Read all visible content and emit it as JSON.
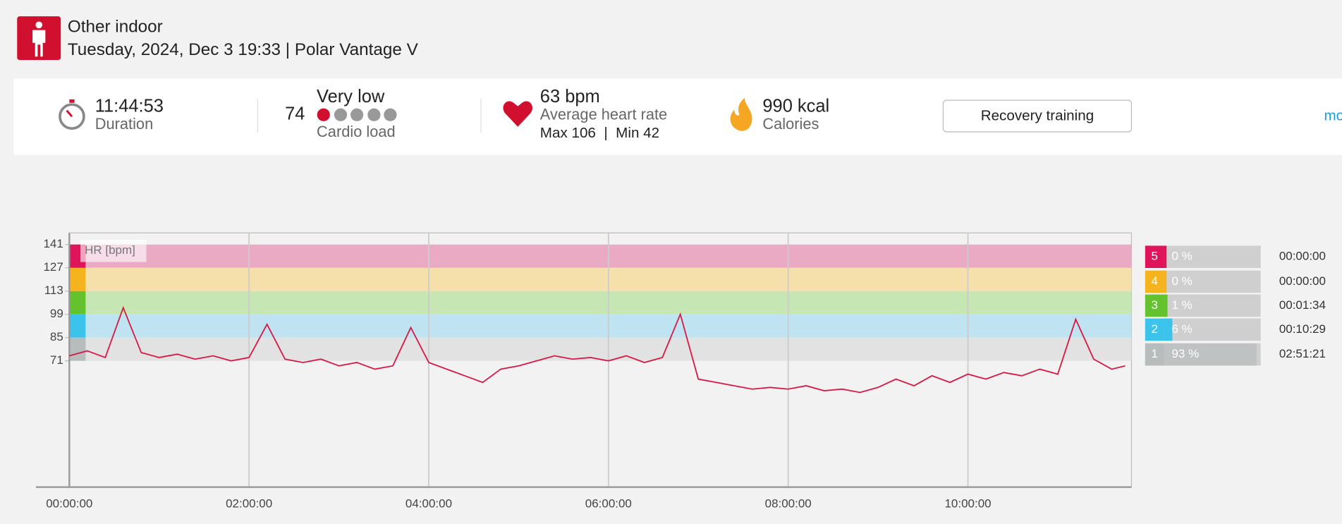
{
  "header": {
    "title": "Other indoor",
    "subtitle": "Tuesday, 2024, Dec 3 19:33 | Polar Vantage V"
  },
  "summary": {
    "duration": "11:44:53",
    "duration_label": "Duration",
    "cardio_load": "74",
    "cardio_level": "Very low",
    "cardio_label": "Cardio load",
    "avg_hr": "63 bpm",
    "avg_hr_label": "Average heart rate",
    "hr_range": "Max 106  |  Min 42",
    "calories": "990 kcal",
    "calories_label": "Calories",
    "benefit": "Recovery training",
    "more": "mo"
  },
  "chart_data": {
    "type": "line",
    "x": [
      0,
      0.2,
      0.4,
      0.6,
      0.8,
      1.0,
      1.2,
      1.4,
      1.6,
      1.8,
      2.0,
      2.2,
      2.4,
      2.6,
      2.8,
      3.0,
      3.2,
      3.4,
      3.6,
      3.8,
      4.0,
      4.2,
      4.4,
      4.6,
      4.8,
      5.0,
      5.2,
      5.4,
      5.6,
      5.8,
      6.0,
      6.2,
      6.4,
      6.6,
      6.8,
      7.0,
      7.2,
      7.4,
      7.6,
      7.8,
      8.0,
      8.2,
      8.4,
      8.6,
      8.8,
      9.0,
      9.2,
      9.4,
      9.6,
      9.8,
      10.0,
      10.2,
      10.4,
      10.6,
      10.8,
      11.0,
      11.2,
      11.4,
      11.6,
      11.75
    ],
    "series": [
      {
        "name": "HR [bpm]",
        "color": "#d61a45",
        "values": [
          74,
          77,
          73,
          103,
          76,
          73,
          75,
          72,
          74,
          71,
          73,
          93,
          72,
          70,
          72,
          68,
          70,
          66,
          68,
          91,
          70,
          66,
          62,
          58,
          66,
          68,
          71,
          74,
          72,
          73,
          71,
          74,
          70,
          73,
          99,
          60,
          58,
          56,
          54,
          55,
          54,
          56,
          53,
          54,
          52,
          55,
          60,
          56,
          62,
          58,
          63,
          60,
          64,
          62,
          66,
          63,
          96,
          72,
          66,
          68
        ]
      }
    ],
    "xlim": [
      0,
      11.82
    ],
    "xticks": [
      {
        "value": 0,
        "label": "00:00:00"
      },
      {
        "value": 2,
        "label": "02:00:00"
      },
      {
        "value": 4,
        "label": "04:00:00"
      },
      {
        "value": 6,
        "label": "06:00:00"
      },
      {
        "value": 8,
        "label": "08:00:00"
      },
      {
        "value": 10,
        "label": "10:00:00"
      }
    ],
    "ylim": [
      -5,
      148
    ],
    "yticks": [
      71,
      85,
      99,
      113,
      127,
      141
    ],
    "grid": true,
    "zone_colors": [
      "#b7bcbc",
      "#3cc3ec",
      "#63c22d",
      "#f5b31d",
      "#e0145a"
    ],
    "zone_fills": [
      "#e2e2e2",
      "#bfe3f0",
      "#c6e6b4",
      "#f5e0ac",
      "#ebaac4"
    ],
    "zones": {
      "names": [
        "5",
        "4",
        "3",
        "2",
        "1"
      ],
      "values": [
        0,
        0,
        1,
        6,
        93
      ],
      "value_labels": [
        "0 %",
        "0 %",
        "1 %",
        "6 %",
        "93 %"
      ],
      "times": [
        "00:00:00",
        "00:00:00",
        "00:01:34",
        "00:10:29",
        "02:51:21"
      ],
      "colors": [
        "#e0145a",
        "#f5b31d",
        "#63c22d",
        "#3cc3ec",
        "#b7bcbc"
      ]
    }
  }
}
